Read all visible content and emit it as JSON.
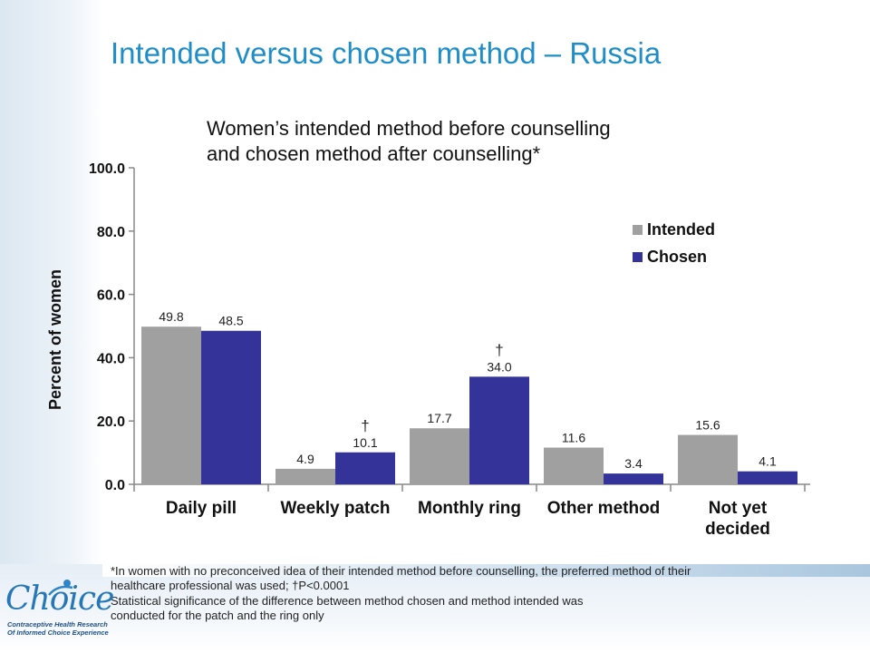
{
  "page": {
    "title": "Intended versus chosen method – Russia",
    "subtitle_lines": [
      "Women’s intended method before counselling",
      "and chosen method after counselling*"
    ],
    "footnote_lines": [
      "*In women with no preconceived idea of their intended method before counselling, the preferred method of their",
      "healthcare professional was used; †P<0.0001",
      "Statistical significance of the difference between method chosen and method intended was",
      "conducted for the patch and the ring only"
    ],
    "logo": {
      "word": "Choice",
      "tagline": [
        "Contraceptive Health Research",
        "Of Informed Choice Experience"
      ]
    }
  },
  "chart_data": {
    "type": "bar",
    "ylabel": "Percent of women",
    "ylim": [
      0,
      100
    ],
    "yticks": [
      "0.0",
      "20.0",
      "40.0",
      "60.0",
      "80.0",
      "100.0"
    ],
    "categories": [
      [
        "Daily pill"
      ],
      [
        "Weekly patch"
      ],
      [
        "Monthly ring"
      ],
      [
        "Other method"
      ],
      [
        "Not yet",
        "decided"
      ]
    ],
    "series": [
      {
        "name": "Intended",
        "color": "#a0a0a0",
        "values": [
          49.8,
          4.9,
          17.7,
          11.6,
          15.6
        ],
        "labels": [
          "49.8",
          "4.9",
          "17.7",
          "11.6",
          "15.6"
        ]
      },
      {
        "name": "Chosen",
        "color": "#333399",
        "values": [
          48.5,
          10.1,
          34.0,
          3.4,
          4.1
        ],
        "labels": [
          "48.5",
          "10.1",
          "34.0",
          "3.4",
          "4.1"
        ]
      }
    ],
    "significance": {
      "marker": "†",
      "series_index": 1,
      "categories": [
        1,
        2
      ]
    },
    "legend": "right"
  }
}
